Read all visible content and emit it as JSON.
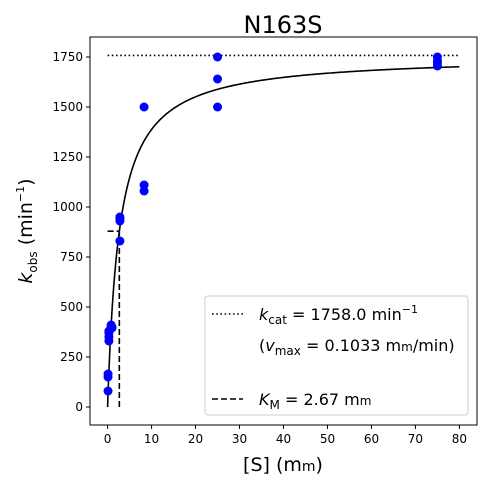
{
  "chart_data": {
    "type": "scatter",
    "title": "N163S",
    "xlabel": {
      "main": "[S] (m",
      "unit_sc": "m",
      "close": ")"
    },
    "ylabel": {
      "k": "k",
      "sub": "obs",
      "main": " (min",
      "sup": "−1",
      "close": ")"
    },
    "xlim": [
      -4,
      84
    ],
    "ylim": [
      -90,
      1850
    ],
    "x_ticks": [
      0,
      10,
      20,
      30,
      40,
      50,
      60,
      70,
      80
    ],
    "y_ticks": [
      0,
      250,
      500,
      750,
      1000,
      1250,
      1500,
      1750
    ],
    "grid": false,
    "legend_position": "bottom-right",
    "points": {
      "color": "#0000ff",
      "x": [
        0.1,
        0.1,
        0.1,
        0.3,
        0.3,
        0.3,
        0.3,
        0.8,
        0.8,
        1.0,
        1.0,
        2.8,
        2.8,
        2.8,
        2.8,
        8.3,
        8.3,
        8.3,
        25,
        25,
        25,
        75,
        75,
        75,
        75
      ],
      "y": [
        80,
        150,
        165,
        330,
        350,
        370,
        380,
        400,
        410,
        400,
        395,
        930,
        950,
        940,
        830,
        1500,
        1080,
        1110,
        1750,
        1640,
        1500,
        1750,
        1720,
        1730,
        1705
      ]
    },
    "fit": {
      "vmax_kcat": 1758.0,
      "km": 2.67,
      "x_max": 80,
      "color": "#000000"
    },
    "kcat_line": {
      "y": 1758.0,
      "x_range": [
        0,
        80
      ]
    },
    "km_marker": {
      "x": 2.67,
      "y_half": 879,
      "h_start": 0
    },
    "legend": {
      "kcat": {
        "k": "k",
        "sub": "cat",
        "main": " = 1758.0 min",
        "sup": "−1"
      },
      "vmax": {
        "open": "(",
        "v": "v",
        "sub": "max",
        "main": " = 0.1033 m",
        "unit_sc": "m",
        "tail": "/min)"
      },
      "km": {
        "k": "K",
        "sub": "M",
        "main": " = 2.67 m",
        "unit_sc": "m"
      }
    }
  }
}
